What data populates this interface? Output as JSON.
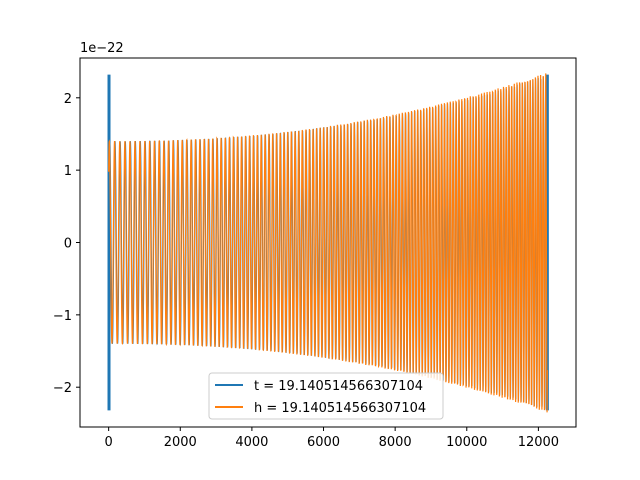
{
  "chart_data": {
    "type": "line",
    "title": "",
    "xlabel": "",
    "ylabel": "",
    "y_offset_label": "1e−22",
    "xlim": [
      -800,
      13050
    ],
    "ylim": [
      -2.55,
      2.55
    ],
    "x_ticks": [
      0,
      2000,
      4000,
      6000,
      8000,
      10000,
      12000
    ],
    "x_tick_labels": [
      "0",
      "2000",
      "4000",
      "6000",
      "8000",
      "10000",
      "12000"
    ],
    "y_ticks": [
      -2,
      -1,
      0,
      1,
      2
    ],
    "y_tick_labels": [
      "−2",
      "−1",
      "0",
      "1",
      "2"
    ],
    "grid": false,
    "legend_position": "lower center",
    "series": [
      {
        "name": "t = 19.140514566307104",
        "color": "#1f77b4",
        "description_points": {
          "x_start": 0,
          "x_end": 12250,
          "amplitude_start": 2.32,
          "amplitude_body_start": 1.4,
          "amplitude_end": 2.32
        }
      },
      {
        "name": "h = 19.140514566307104",
        "color": "#ff7f0e",
        "description_points": {
          "x_start": 0,
          "x_end": 12250,
          "amplitude_start": 1.4,
          "amplitude_end": 2.35
        }
      }
    ]
  }
}
